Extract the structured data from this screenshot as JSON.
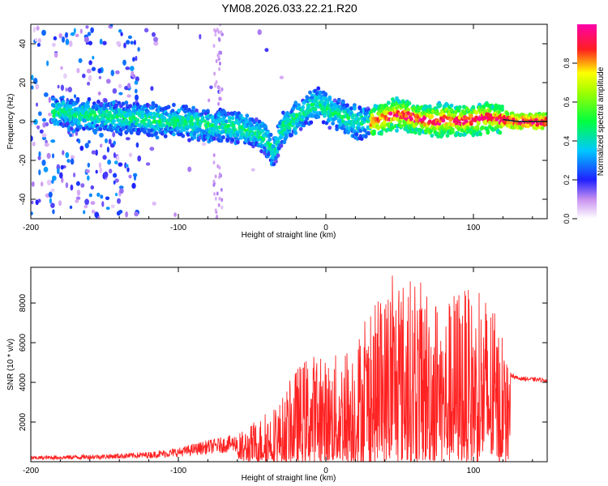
{
  "title": "YM08.2026.033.22.21.R20",
  "chart_data": [
    {
      "type": "heatmap",
      "name": "spectrogram",
      "xlabel": "Height of straight line (km)",
      "ylabel": "Frequency (Hz)",
      "xlim": [
        -200,
        150
      ],
      "ylim": [
        -50,
        50
      ],
      "xticks": [
        -200,
        -100,
        0,
        100
      ],
      "xtick_labels": [
        "-200",
        "-100",
        "0",
        "100"
      ],
      "yticks": [
        -40,
        -20,
        0,
        20,
        40
      ],
      "ytick_labels": [
        "-40",
        "-20",
        "0",
        "20",
        "40"
      ],
      "colorbar": {
        "label": "Normalized spectral amplitude",
        "range": [
          0,
          1
        ],
        "ticks": [
          0.0,
          0.2,
          0.4,
          0.6,
          0.8
        ],
        "tick_labels": [
          "0.0",
          "0.2",
          "0.4",
          "0.6",
          "0.8"
        ],
        "colors": [
          "#ffffff",
          "#8a2be2",
          "#0000ff",
          "#00ffff",
          "#00ff00",
          "#ffff00",
          "#ff0000",
          "#ff00ff"
        ]
      },
      "ridge": {
        "x": [
          -180,
          -160,
          -140,
          -120,
          -100,
          -80,
          -60,
          -45,
          -38,
          -35,
          -30,
          -20,
          -10,
          -5,
          0,
          10,
          20,
          30,
          40,
          50,
          60,
          70,
          80,
          90,
          100,
          110,
          120,
          130,
          150
        ],
        "y": [
          5,
          3,
          2,
          1,
          0,
          -2,
          -3,
          -6,
          -12,
          -16,
          -4,
          2,
          7,
          10,
          6,
          3,
          0,
          -1,
          2,
          4,
          2,
          0,
          1,
          0,
          1,
          2,
          1,
          0,
          0
        ]
      }
    },
    {
      "type": "line",
      "name": "snr",
      "xlabel": "Height of straight line (km)",
      "ylabel": "SNR (10 * v/v)",
      "xlim": [
        -200,
        150
      ],
      "ylim": [
        0,
        9800
      ],
      "xticks": [
        -200,
        -100,
        0,
        100
      ],
      "xtick_labels": [
        "-200",
        "-100",
        "0",
        "100"
      ],
      "yticks": [
        2000,
        4000,
        6000,
        8000
      ],
      "ytick_labels": [
        "2000",
        "4000",
        "6000",
        "8000"
      ],
      "color": "#ff2222",
      "envelope": {
        "x": [
          -200,
          -150,
          -120,
          -100,
          -80,
          -60,
          -45,
          -40,
          -30,
          -20,
          -10,
          0,
          10,
          20,
          30,
          40,
          45,
          50,
          55,
          60,
          70,
          80,
          90,
          100,
          110,
          120,
          125,
          130,
          150
        ],
        "y": [
          280,
          380,
          500,
          700,
          1100,
          1400,
          2200,
          2600,
          3200,
          4800,
          5600,
          5200,
          5600,
          6400,
          7600,
          8600,
          9800,
          9200,
          9600,
          9000,
          9300,
          7800,
          9200,
          8400,
          8700,
          6200,
          4400,
          4200,
          4100
        ]
      }
    }
  ]
}
